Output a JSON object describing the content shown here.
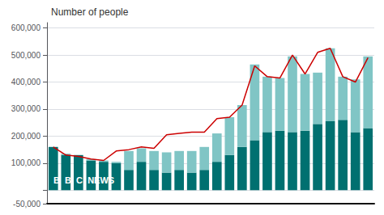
{
  "chart_data": {
    "type": "bar",
    "title": "Number of people",
    "categories": [
      null,
      null,
      null,
      null,
      null,
      null,
      null,
      null,
      null,
      null,
      null,
      null,
      null,
      null,
      null,
      null,
      null,
      null,
      null,
      null,
      null,
      null,
      null,
      null,
      null,
      null
    ],
    "series": [
      {
        "type": "bar",
        "color": "#007070",
        "values": [
          160000,
          130000,
          130000,
          110000,
          105000,
          100000,
          75000,
          105000,
          75000,
          65000,
          75000,
          65000,
          75000,
          105000,
          130000,
          160000,
          185000,
          215000,
          220000,
          215000,
          220000,
          245000,
          255000,
          260000,
          215000,
          230000
        ]
      },
      {
        "type": "bar",
        "color": "#80c5c5",
        "values": [
          0,
          5000,
          0,
          5000,
          5000,
          5000,
          70000,
          50000,
          70000,
          75000,
          70000,
          80000,
          85000,
          105000,
          140000,
          155000,
          280000,
          205000,
          195000,
          280000,
          210000,
          190000,
          270000,
          160000,
          195000,
          265000
        ]
      },
      {
        "type": "line",
        "color": "#cc0000",
        "values": [
          160000,
          130000,
          125000,
          115000,
          110000,
          145000,
          150000,
          160000,
          155000,
          205000,
          210000,
          215000,
          215000,
          265000,
          270000,
          315000,
          460000,
          420000,
          415000,
          500000,
          430000,
          510000,
          525000,
          420000,
          400000,
          490000
        ]
      }
    ],
    "stacked": true,
    "ylim": [
      -50000,
      620000
    ],
    "yticks": [
      {
        "value": -50000,
        "label": "-50,000"
      },
      {
        "value": 0,
        "label": ""
      },
      {
        "value": 100000,
        "label": "100,000"
      },
      {
        "value": 200000,
        "label": "200,000"
      },
      {
        "value": 300000,
        "label": "300,000"
      },
      {
        "value": 400000,
        "label": "400,000"
      },
      {
        "value": 500000,
        "label": "500,000"
      },
      {
        "value": 600000,
        "label": "600,000"
      }
    ],
    "grid": true,
    "tick_labels": "y",
    "annotations": [
      {
        "text": "B  B  C  NEWS"
      }
    ]
  }
}
